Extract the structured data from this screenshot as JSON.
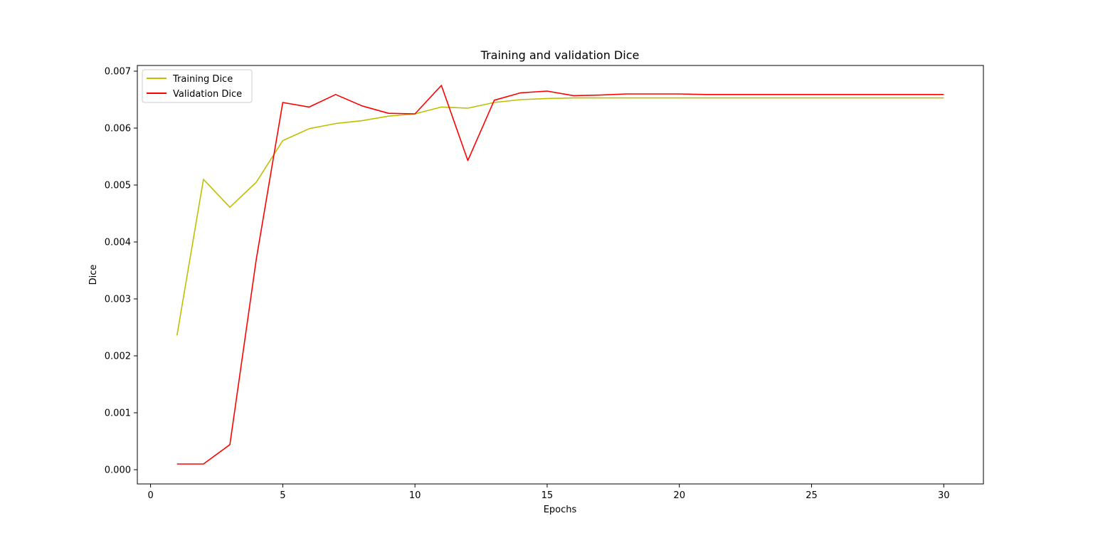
{
  "chart_data": {
    "type": "line",
    "title": "Training and validation Dice",
    "xlabel": "Epochs",
    "ylabel": "Dice",
    "xlim": [
      -0.5,
      31.5
    ],
    "ylim": [
      -0.00025,
      0.0071
    ],
    "xticks": [
      0,
      5,
      10,
      15,
      20,
      25,
      30
    ],
    "yticks": [
      0.0,
      0.001,
      0.002,
      0.003,
      0.004,
      0.005,
      0.006,
      0.007
    ],
    "ytick_labels": [
      "0.000",
      "0.001",
      "0.002",
      "0.003",
      "0.004",
      "0.005",
      "0.006",
      "0.007"
    ],
    "grid": false,
    "legend_position": "top-left",
    "x": [
      1,
      2,
      3,
      4,
      5,
      6,
      7,
      8,
      9,
      10,
      11,
      12,
      13,
      14,
      15,
      16,
      17,
      18,
      19,
      20,
      21,
      22,
      23,
      24,
      25,
      26,
      27,
      28,
      29,
      30
    ],
    "series": [
      {
        "name": "Training Dice",
        "color": "#bfbf00",
        "values": [
          0.00236,
          0.0051,
          0.00461,
          0.00505,
          0.00578,
          0.00599,
          0.00608,
          0.00613,
          0.00621,
          0.00625,
          0.00637,
          0.00635,
          0.00645,
          0.0065,
          0.00652,
          0.00653,
          0.00653,
          0.00653,
          0.00653,
          0.00653,
          0.00653,
          0.00653,
          0.00653,
          0.00653,
          0.00653,
          0.00653,
          0.00653,
          0.00653,
          0.00653,
          0.00653
        ]
      },
      {
        "name": "Validation Dice",
        "color": "#ff0000",
        "values": [
          0.0001,
          0.0001,
          0.00044,
          0.0037,
          0.00645,
          0.00637,
          0.00659,
          0.00639,
          0.00626,
          0.00625,
          0.00675,
          0.00543,
          0.00649,
          0.00662,
          0.00665,
          0.00657,
          0.00658,
          0.0066,
          0.0066,
          0.0066,
          0.00659,
          0.00659,
          0.00659,
          0.00659,
          0.00659,
          0.00659,
          0.00659,
          0.00659,
          0.00659,
          0.00659
        ]
      }
    ]
  }
}
